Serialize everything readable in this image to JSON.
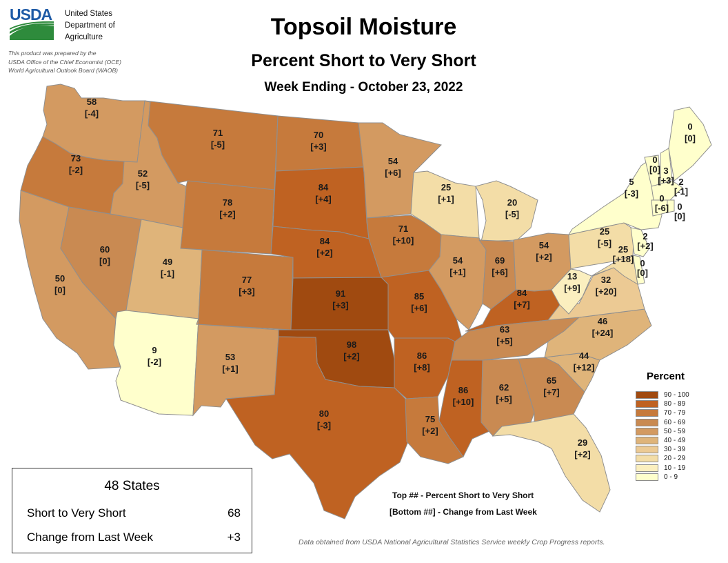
{
  "header": {
    "logo_text": "USDA",
    "agency_lines": [
      "United States",
      "Department of",
      "Agriculture"
    ],
    "prepared_lines": [
      "This product was prepared by the",
      "USDA Office of the Chief Economist (OCE)",
      "World Agricultural Outlook Board (WAOB)"
    ],
    "title": "Topsoil Moisture",
    "subtitle": "Percent Short to Very Short",
    "week": "Week Ending - October 23, 2022"
  },
  "colors": {
    "c90": "#a04a10",
    "c80": "#bf6222",
    "c70": "#c67a3c",
    "c60": "#c98a52",
    "c50": "#d39a61",
    "c40": "#dfb47a",
    "c30": "#ecca94",
    "c20": "#f3dda7",
    "c10": "#fbefbf",
    "c0": "#ffffcc",
    "border": "#8f8f8f"
  },
  "legend": {
    "title": "Percent",
    "items": [
      {
        "label": "90 - 100",
        "color": "#a04a10"
      },
      {
        "label": "80 - 89",
        "color": "#bf6222"
      },
      {
        "label": "70 - 79",
        "color": "#c67a3c"
      },
      {
        "label": "60 - 69",
        "color": "#c98a52"
      },
      {
        "label": "50 - 59",
        "color": "#d39a61"
      },
      {
        "label": "40 - 49",
        "color": "#dfb47a"
      },
      {
        "label": "30 - 39",
        "color": "#ecca94"
      },
      {
        "label": "20 - 29",
        "color": "#f3dda7"
      },
      {
        "label": "10 - 19",
        "color": "#fbefbf"
      },
      {
        "label": "0 - 9",
        "color": "#ffffcc"
      }
    ]
  },
  "states": {
    "WA": {
      "value": "58",
      "change": "[-4]"
    },
    "OR": {
      "value": "73",
      "change": "[-2]"
    },
    "CA": {
      "value": "50",
      "change": "[0]"
    },
    "NV": {
      "value": "60",
      "change": "[0]"
    },
    "ID": {
      "value": "52",
      "change": "[-5]"
    },
    "MT": {
      "value": "71",
      "change": "[-5]"
    },
    "WY": {
      "value": "78",
      "change": "[+2]"
    },
    "UT": {
      "value": "49",
      "change": "[-1]"
    },
    "AZ": {
      "value": "9",
      "change": "[-2]"
    },
    "CO": {
      "value": "77",
      "change": "[+3]"
    },
    "NM": {
      "value": "53",
      "change": "[+1]"
    },
    "ND": {
      "value": "70",
      "change": "[+3]"
    },
    "SD": {
      "value": "84",
      "change": "[+4]"
    },
    "NE": {
      "value": "84",
      "change": "[+2]"
    },
    "KS": {
      "value": "91",
      "change": "[+3]"
    },
    "OK": {
      "value": "98",
      "change": "[+2]"
    },
    "TX": {
      "value": "80",
      "change": "[-3]"
    },
    "MN": {
      "value": "54",
      "change": "[+6]"
    },
    "IA": {
      "value": "71",
      "change": "[+10]"
    },
    "MO": {
      "value": "85",
      "change": "[+6]"
    },
    "AR": {
      "value": "86",
      "change": "[+8]"
    },
    "LA": {
      "value": "75",
      "change": "[+2]"
    },
    "WI": {
      "value": "25",
      "change": "[+1]"
    },
    "IL": {
      "value": "54",
      "change": "[+1]"
    },
    "MI": {
      "value": "20",
      "change": "[-5]"
    },
    "IN": {
      "value": "69",
      "change": "[+6]"
    },
    "OH": {
      "value": "54",
      "change": "[+2]"
    },
    "KY": {
      "value": "84",
      "change": "[+7]"
    },
    "TN": {
      "value": "63",
      "change": "[+5]"
    },
    "MS": {
      "value": "86",
      "change": "[+10]"
    },
    "AL": {
      "value": "62",
      "change": "[+5]"
    },
    "GA": {
      "value": "65",
      "change": "[+7]"
    },
    "FL": {
      "value": "29",
      "change": "[+2]"
    },
    "SC": {
      "value": "44",
      "change": "[+12]"
    },
    "NC": {
      "value": "46",
      "change": "[+24]"
    },
    "VA": {
      "value": "32",
      "change": "[+20]"
    },
    "WV": {
      "value": "13",
      "change": "[+9]"
    },
    "PA": {
      "value": "25",
      "change": "[-5]"
    },
    "MD": {
      "value": "25",
      "change": "[+18]"
    },
    "DE": {
      "value": "0",
      "change": "[0]"
    },
    "NJ": {
      "value": "2",
      "change": "[+2]"
    },
    "NY": {
      "value": "5",
      "change": "[-3]"
    },
    "VT": {
      "value": "0",
      "change": "[0]"
    },
    "NH": {
      "value": "3",
      "change": "[+3]"
    },
    "MA": {
      "value": "2",
      "change": "[-1]"
    },
    "CT": {
      "value": "0",
      "change": "[-6]"
    },
    "RI": {
      "value": "0",
      "change": "[0]"
    },
    "ME": {
      "value": "0",
      "change": "[0]"
    }
  },
  "summary": {
    "title": "48 States",
    "rows": [
      {
        "label": "Short to Very Short",
        "value": "68"
      },
      {
        "label": "Change from Last Week",
        "value": "+3"
      }
    ]
  },
  "notes": {
    "top": "Top ## - Percent Short to Very Short",
    "bottom": "[Bottom ##] - Change from Last Week"
  },
  "source": "Data obtained from USDA National Agricultural Statistics Service weekly Crop Progress reports."
}
